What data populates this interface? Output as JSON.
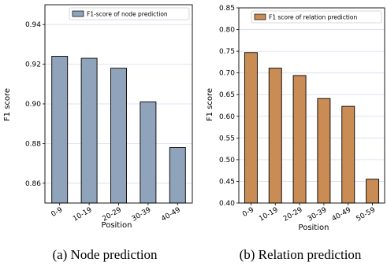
{
  "chart_data": [
    {
      "type": "bar",
      "caption": "(a) Node prediction",
      "legend": "F1-score of node prediction",
      "legend_position": "top-right",
      "color": "#8fa3ba",
      "xlabel": "Position",
      "ylabel": "F1 score",
      "ylim": [
        0.85,
        0.95
      ],
      "yticks": [
        "0.86",
        "0.88",
        "0.90",
        "0.92",
        "0.94"
      ],
      "categories": [
        "0-9",
        "10-19",
        "20-29",
        "30-39",
        "40-49"
      ],
      "values": [
        0.924,
        0.923,
        0.918,
        0.901,
        0.878
      ],
      "grid": true
    },
    {
      "type": "bar",
      "caption": "(b) Relation prediction",
      "legend": "F1 score of relation prediction",
      "legend_position": "top-right",
      "color": "#c98c55",
      "xlabel": "Position",
      "ylabel": "F1 score",
      "ylim": [
        0.4,
        0.85
      ],
      "yticks": [
        "0.40",
        "0.45",
        "0.50",
        "0.55",
        "0.60",
        "0.65",
        "0.70",
        "0.75",
        "0.80",
        "0.85"
      ],
      "categories": [
        "0-9",
        "10-19",
        "20-29",
        "30-39",
        "40-49",
        "50-59"
      ],
      "values": [
        0.747,
        0.711,
        0.694,
        0.641,
        0.623,
        0.455
      ],
      "grid": true
    }
  ]
}
